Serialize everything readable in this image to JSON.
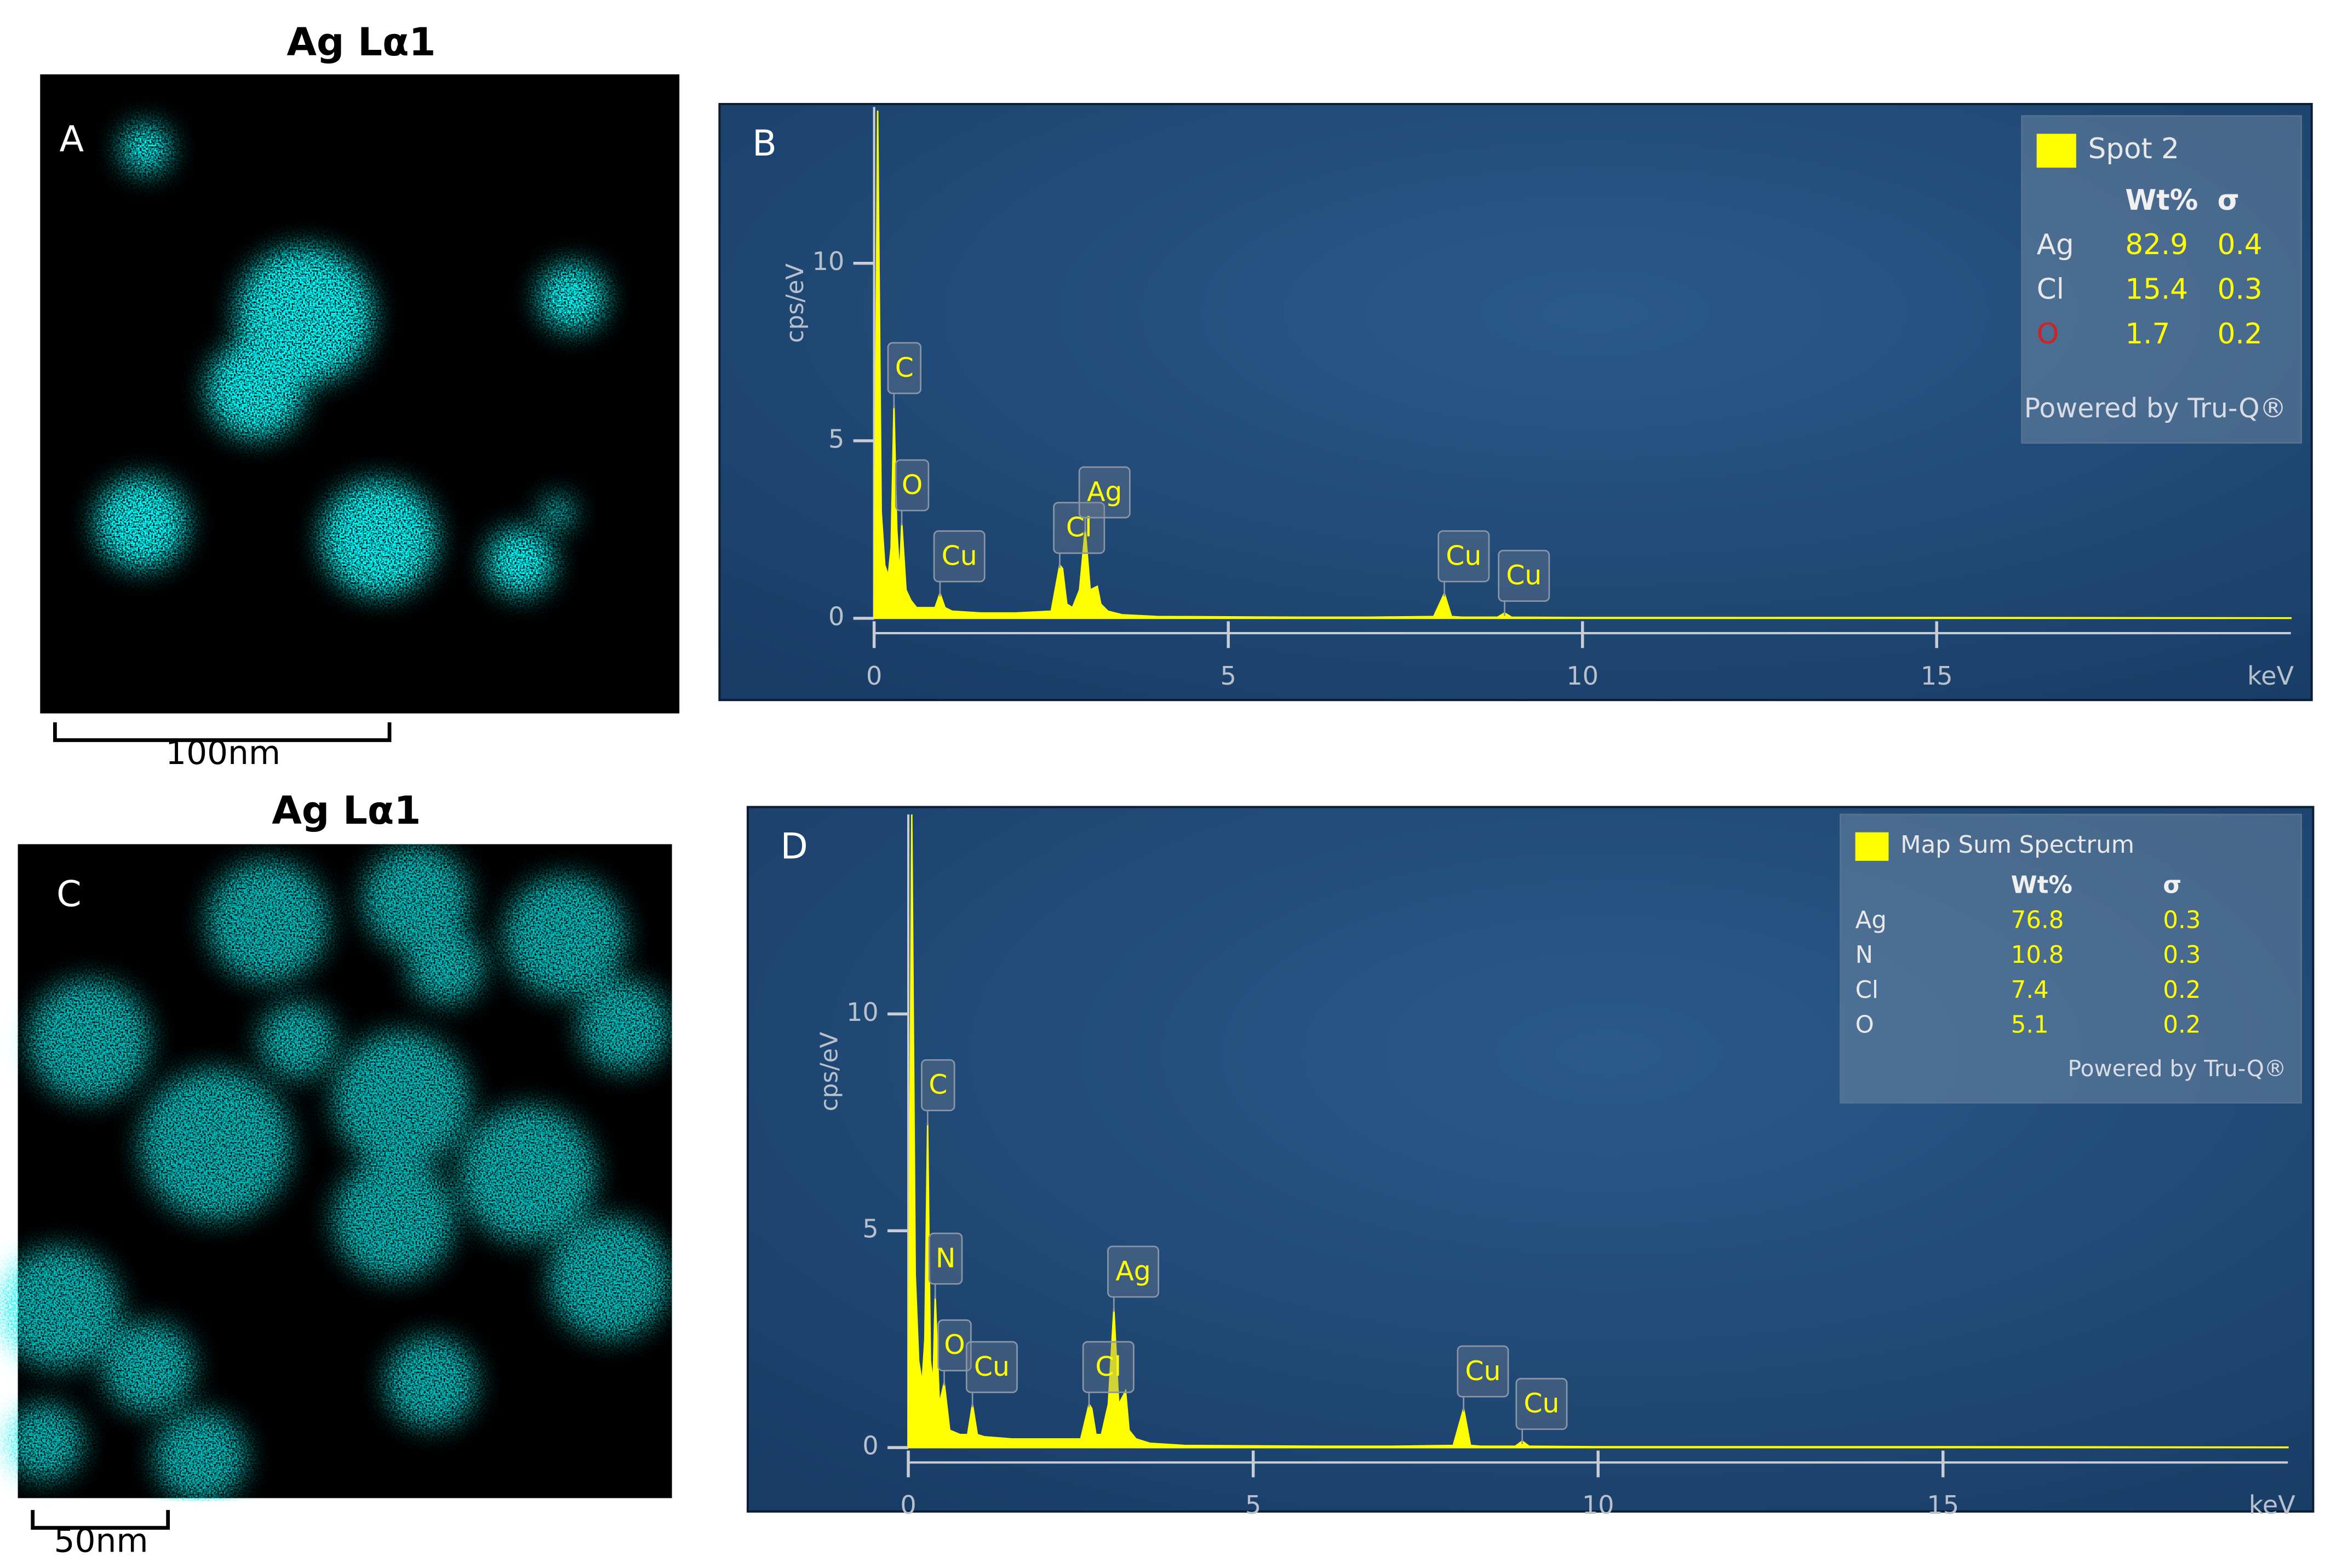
{
  "maps": [
    {
      "title": "Ag Lα1",
      "letter": "A",
      "scale_bar": "100nm"
    },
    {
      "title": "Ag Lα1",
      "letter": "C",
      "scale_bar": "50nm"
    }
  ],
  "chart_data": [
    {
      "type": "area",
      "panel": "B",
      "xlabel": "keV",
      "ylabel": "cps/eV",
      "xlim": [
        0,
        20
      ],
      "xticks": [
        0,
        5,
        10,
        15
      ],
      "ylim": [
        0,
        14.4
      ],
      "yticks": [
        0,
        5,
        10
      ],
      "x": [
        0,
        0.05,
        0.1,
        0.15,
        0.2,
        0.24,
        0.28,
        0.32,
        0.36,
        0.39,
        0.45,
        0.52,
        0.6,
        0.75,
        0.86,
        0.93,
        1.0,
        1.1,
        1.5,
        2.0,
        2.5,
        2.62,
        2.66,
        2.72,
        2.8,
        2.9,
        2.98,
        3.05,
        3.15,
        3.2,
        3.3,
        3.5,
        4.0,
        5,
        6,
        7,
        7.9,
        8.05,
        8.15,
        8.3,
        8.8,
        8.9,
        9.0,
        10,
        12,
        15,
        20
      ],
      "series": [
        {
          "name": "Spot 2",
          "color": "#ffff00",
          "values": [
            0,
            14.3,
            3,
            1.5,
            1.2,
            2,
            6,
            2.5,
            1.2,
            2.7,
            0.8,
            0.5,
            0.3,
            0.3,
            0.3,
            0.7,
            0.3,
            0.2,
            0.15,
            0.15,
            0.2,
            1.5,
            1.4,
            0.4,
            0.3,
            0.8,
            2.5,
            0.8,
            0.9,
            0.4,
            0.2,
            0.1,
            0.05,
            0.04,
            0.03,
            0.03,
            0.05,
            0.7,
            0.05,
            0.03,
            0.03,
            0.15,
            0.03,
            0.02,
            0.02,
            0.02,
            0.01
          ]
        }
      ],
      "peaks": [
        {
          "label": "C",
          "x": 0.28
        },
        {
          "label": "O",
          "x": 0.39
        },
        {
          "label": "Cu",
          "x": 0.93
        },
        {
          "label": "Cl",
          "x": 2.62
        },
        {
          "label": "Ag",
          "x": 2.98
        },
        {
          "label": "Cu",
          "x": 8.05
        },
        {
          "label": "Cu",
          "x": 8.9
        }
      ],
      "quantification": {
        "columns": [
          "Wt%",
          "σ"
        ],
        "rows": [
          {
            "element": "Ag",
            "wt": 82.9,
            "sigma": 0.4,
            "color": "#e8e8e8"
          },
          {
            "element": "Cl",
            "wt": 15.4,
            "sigma": 0.3,
            "color": "#e8e8e8"
          },
          {
            "element": "O",
            "wt": 1.7,
            "sigma": 0.2,
            "color": "#d62020"
          }
        ],
        "footer": "Powered by Tru-Q®"
      }
    },
    {
      "type": "area",
      "panel": "D",
      "xlabel": "keV",
      "ylabel": "cps/eV",
      "xlim": [
        0,
        20
      ],
      "xticks": [
        0,
        5,
        10,
        15
      ],
      "ylim": [
        0,
        14.6
      ],
      "yticks": [
        0,
        5,
        10
      ],
      "x": [
        0,
        0.05,
        0.1,
        0.15,
        0.2,
        0.24,
        0.28,
        0.32,
        0.36,
        0.39,
        0.45,
        0.52,
        0.6,
        0.75,
        0.86,
        0.93,
        1.0,
        1.1,
        1.5,
        2.0,
        2.5,
        2.62,
        2.66,
        2.72,
        2.8,
        2.9,
        2.98,
        3.05,
        3.15,
        3.2,
        3.3,
        3.5,
        4.0,
        5,
        6,
        7,
        7.9,
        8.05,
        8.15,
        8.3,
        8.8,
        8.9,
        9.0,
        10,
        12,
        15,
        20
      ],
      "series": [
        {
          "name": "Map Sum Spectrum",
          "color": "#ffff00",
          "values": [
            0,
            14.6,
            4,
            2,
            1.5,
            2.5,
            7.5,
            2,
            1.5,
            3.5,
            1,
            1.5,
            0.4,
            0.3,
            0.3,
            1.0,
            0.3,
            0.25,
            0.2,
            0.2,
            0.2,
            1.0,
            0.9,
            0.3,
            0.3,
            1.0,
            3.2,
            1.0,
            1.3,
            0.4,
            0.2,
            0.1,
            0.05,
            0.04,
            0.03,
            0.03,
            0.05,
            0.9,
            0.05,
            0.03,
            0.03,
            0.15,
            0.03,
            0.02,
            0.02,
            0.02,
            0.01
          ]
        }
      ],
      "peaks": [
        {
          "label": "C",
          "x": 0.28
        },
        {
          "label": "N",
          "x": 0.39
        },
        {
          "label": "O",
          "x": 0.52
        },
        {
          "label": "Cu",
          "x": 0.93
        },
        {
          "label": "Cl",
          "x": 2.62
        },
        {
          "label": "Ag",
          "x": 2.98
        },
        {
          "label": "Cu",
          "x": 8.05
        },
        {
          "label": "Cu",
          "x": 8.9
        }
      ],
      "quantification": {
        "columns": [
          "Wt%",
          "σ"
        ],
        "rows": [
          {
            "element": "Ag",
            "wt": 76.8,
            "sigma": 0.3,
            "color": "#e8e8e8"
          },
          {
            "element": "N",
            "wt": 10.8,
            "sigma": 0.3,
            "color": "#e8e8e8"
          },
          {
            "element": "Cl",
            "wt": 7.4,
            "sigma": 0.2,
            "color": "#e8e8e8"
          },
          {
            "element": "O",
            "wt": 5.1,
            "sigma": 0.2,
            "color": "#e8e8e8"
          }
        ],
        "footer": "Powered by Tru-Q®"
      }
    }
  ]
}
